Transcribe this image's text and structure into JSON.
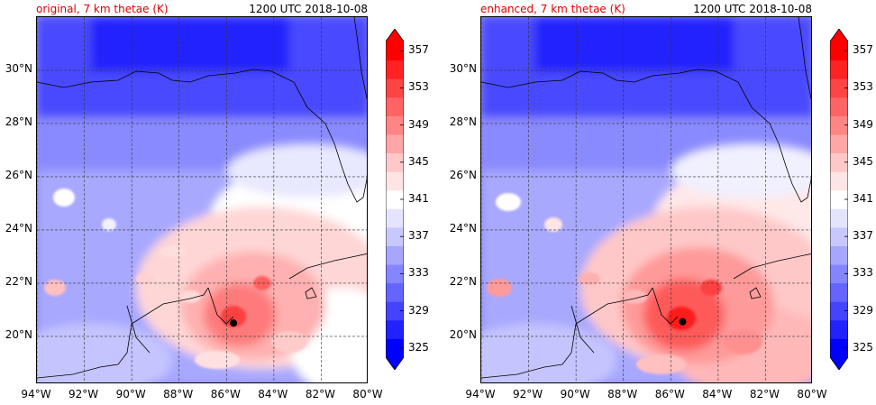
{
  "panels": [
    {
      "title": "original, 7 km thetae (K)",
      "timestamp": "1200 UTC 2018-10-08",
      "storm_center": {
        "lon": -85.7,
        "lat": 20.5
      }
    },
    {
      "title": "enhanced, 7 km thetae (K)",
      "timestamp": "1200 UTC 2018-10-08",
      "storm_center": {
        "lon": -85.5,
        "lat": 20.55
      }
    }
  ],
  "map": {
    "lon_range": [
      -94,
      -80
    ],
    "lat_range": [
      18.2,
      32
    ],
    "lon_ticks": [
      "94°W",
      "92°W",
      "90°W",
      "88°W",
      "86°W",
      "84°W",
      "82°W",
      "80°W"
    ],
    "lat_ticks": [
      "20°N",
      "22°N",
      "24°N",
      "26°N",
      "28°N",
      "30°N"
    ],
    "gridlines": "dashed"
  },
  "colorbar": {
    "variable": "thetae",
    "units": "K",
    "levels": [
      325,
      327,
      329,
      331,
      333,
      335,
      337,
      339,
      341,
      343,
      345,
      347,
      349,
      351,
      353,
      355,
      357
    ],
    "tick_labels": [
      "325",
      "329",
      "333",
      "337",
      "341",
      "345",
      "349",
      "353",
      "357"
    ],
    "colormap": "bwr",
    "extend": "both",
    "colors": [
      "#0000ff",
      "#2222ff",
      "#4444ff",
      "#6464ff",
      "#8585ff",
      "#a6a6ff",
      "#c8c8ff",
      "#e4e4ff",
      "#ffffff",
      "#ffe4e4",
      "#ffc8c8",
      "#ffa6a6",
      "#ff8585",
      "#ff6464",
      "#ff4444",
      "#ff2222",
      "#ff0000"
    ]
  }
}
